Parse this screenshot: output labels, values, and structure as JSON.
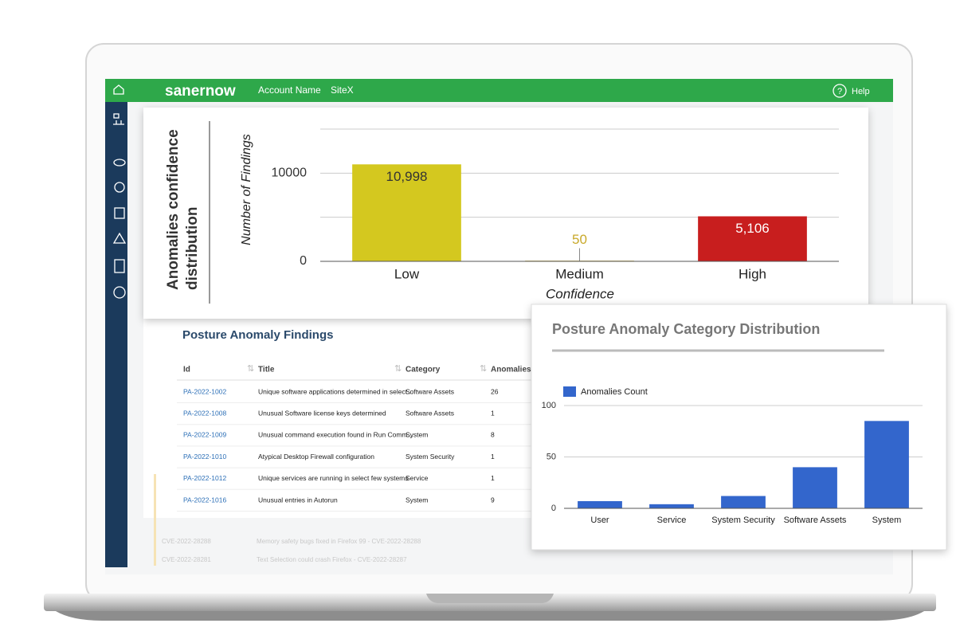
{
  "header": {
    "brand": "sanernow",
    "account": "Account Name",
    "site": "SiteX",
    "help": "Help"
  },
  "confidence_chart": {
    "type": "bar",
    "title": "Anomalies confidence distribution",
    "y_label": "Number of Findings",
    "x_label": "Confidence",
    "categories": [
      "Low",
      "Medium",
      "High"
    ],
    "values": [
      10998,
      50,
      5106
    ],
    "value_labels": [
      "10,998",
      "50",
      "5,106"
    ],
    "colors": [
      "#d4c81f",
      "#c9a92a",
      "#c81e1e"
    ],
    "ylim": [
      0,
      15000
    ],
    "yticks": [
      0,
      10000
    ],
    "gridlines": [
      0,
      5000,
      10000,
      15000
    ]
  },
  "findings_table": {
    "title": "Posture Anomaly Findings",
    "columns": [
      "Id",
      "Title",
      "Category",
      "Anomalies"
    ],
    "rows": [
      [
        "PA-2022-1002",
        "Unique software applications determined in select...",
        "Software Assets",
        "26"
      ],
      [
        "PA-2022-1008",
        "Unusual Software license keys determined",
        "Software Assets",
        "1"
      ],
      [
        "PA-2022-1009",
        "Unusual command execution found in Run Comm...",
        "System",
        "8"
      ],
      [
        "PA-2022-1010",
        "Atypical Desktop Firewall configuration",
        "System Security",
        "1"
      ],
      [
        "PA-2022-1012",
        "Unique services are running in select few systems",
        "Service",
        "1"
      ],
      [
        "PA-2022-1016",
        "Unusual entries in Autorun",
        "System",
        "9"
      ]
    ],
    "background_rows": [
      [
        "CVE-2022-28288",
        "Memory safety bugs fixed in Firefox 99 - CVE-2022-28288"
      ],
      [
        "CVE-2022-28281",
        "Text Selection could crash Firefox - CVE-2022-28287"
      ]
    ]
  },
  "category_chart": {
    "type": "bar",
    "title": "Posture Anomaly Category Distribution",
    "legend": "Anomalies Count",
    "color": "#3366cc",
    "categories": [
      "User",
      "Service",
      "System Security",
      "Software Assets",
      "System"
    ],
    "values": [
      7,
      4,
      12,
      40,
      85
    ],
    "ylim": [
      0,
      100
    ],
    "yticks": [
      0,
      50,
      100
    ]
  }
}
